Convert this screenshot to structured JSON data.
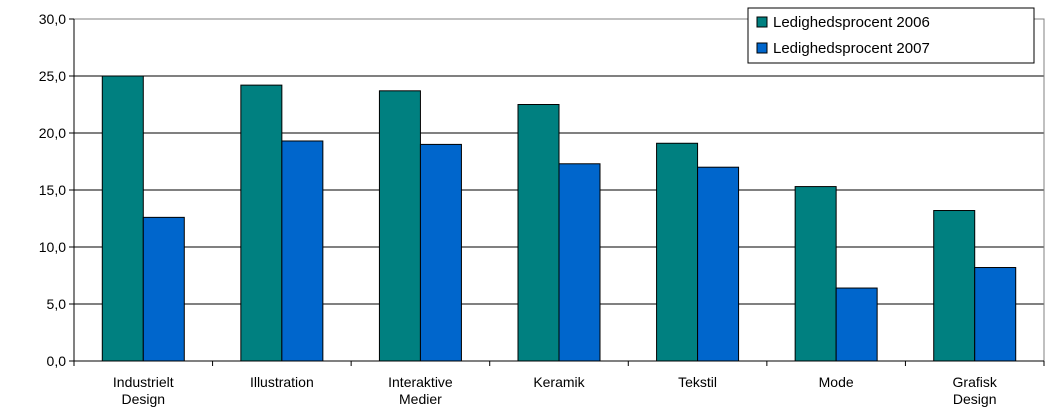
{
  "chart_data": {
    "type": "bar",
    "categories": [
      [
        "Industrielt",
        "Design"
      ],
      [
        "Illustration"
      ],
      [
        "Interaktive",
        "Medier"
      ],
      [
        "Keramik"
      ],
      [
        "Tekstil"
      ],
      [
        "Mode"
      ],
      [
        "Grafisk",
        "Design"
      ]
    ],
    "series": [
      {
        "name": "Ledighedsprocent 2006",
        "color": "#008080",
        "values": [
          25.0,
          24.2,
          23.7,
          22.5,
          19.1,
          15.3,
          13.2
        ]
      },
      {
        "name": "Ledighedsprocent 2007",
        "color": "#0066CC",
        "values": [
          12.6,
          19.3,
          19.0,
          17.3,
          17.0,
          6.4,
          8.2
        ]
      }
    ],
    "y_ticks": [
      "0,0",
      "5,0",
      "10,0",
      "15,0",
      "20,0",
      "25,0",
      "30,0"
    ],
    "ylim": [
      0,
      30
    ],
    "grid": true,
    "legend_position": "top-right",
    "title": "",
    "xlabel": "",
    "ylabel": ""
  }
}
